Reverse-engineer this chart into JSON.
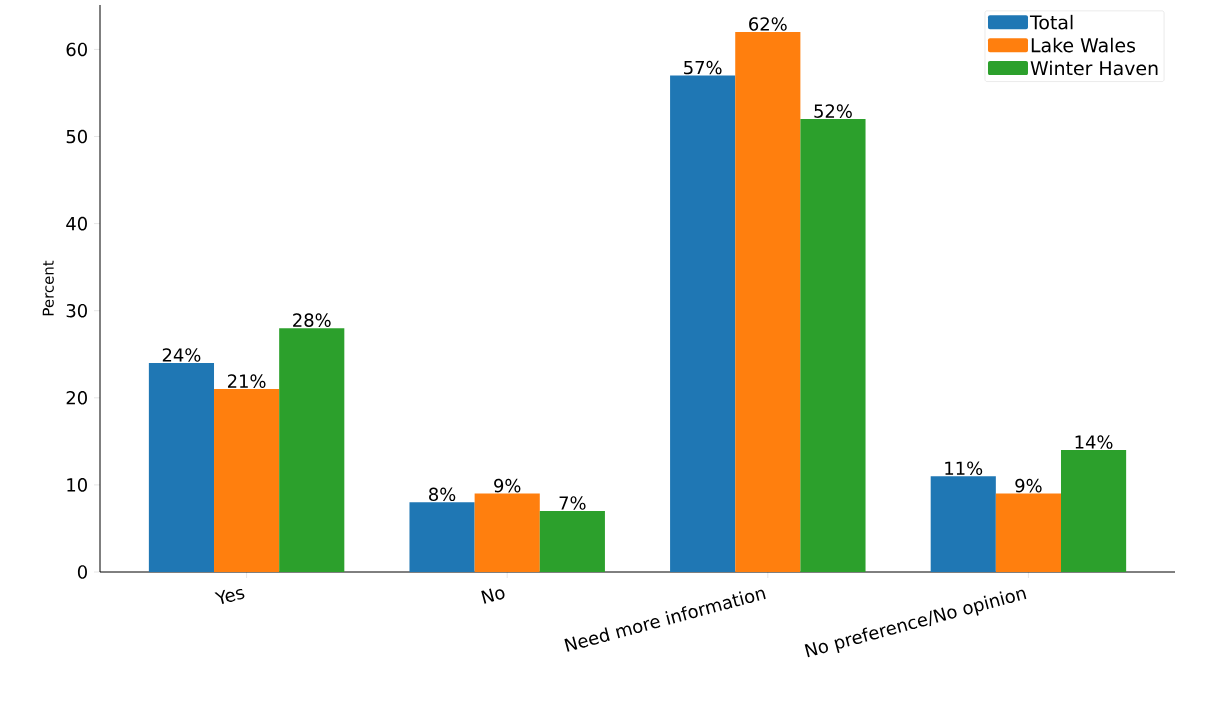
{
  "chart_data": {
    "type": "bar",
    "ylabel": "Percent",
    "categories": [
      "Yes",
      "No",
      "Need more information",
      "No preference/No opinion"
    ],
    "series": [
      {
        "name": "Total",
        "color": "#1f77b4",
        "values": [
          24,
          8,
          57,
          11
        ],
        "value_labels": [
          "24%",
          "8%",
          "57%",
          "11%"
        ]
      },
      {
        "name": "Lake Wales",
        "color": "#ff7f0e",
        "values": [
          21,
          9,
          62,
          9
        ],
        "value_labels": [
          "21%",
          "9%",
          "62%",
          "9%"
        ]
      },
      {
        "name": "Winter Haven",
        "color": "#2ca02c",
        "values": [
          28,
          7,
          52,
          14
        ],
        "value_labels": [
          "28%",
          "7%",
          "52%",
          "14%"
        ]
      }
    ],
    "ylim": [
      0,
      65.1
    ],
    "yticks": [
      0,
      10,
      20,
      30,
      40,
      50,
      60
    ],
    "legend": "top right"
  }
}
